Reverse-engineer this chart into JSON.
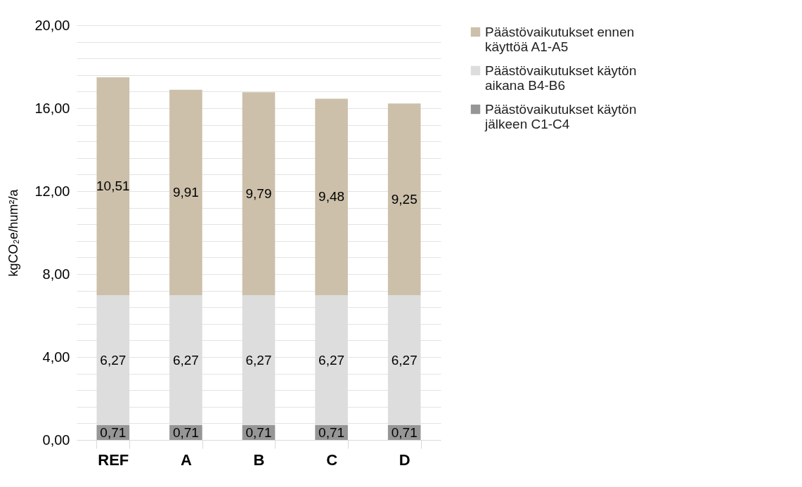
{
  "chart_data": {
    "type": "bar",
    "stacked": true,
    "ylabel": "kgCO₂e/hum²/a",
    "categories": [
      "REF",
      "A",
      "B",
      "C",
      "D"
    ],
    "series": [
      {
        "name": "Päästövaikutukset käytön jälkeen C1-C4",
        "color": "#969696",
        "values": [
          0.71,
          0.71,
          0.71,
          0.71,
          0.71
        ],
        "value_labels": [
          "0,71",
          "0,71",
          "0,71",
          "0,71",
          "0,71"
        ]
      },
      {
        "name": "Päästövaikutukset käytön aikana B4-B6",
        "color": "#dddddd",
        "values": [
          6.27,
          6.27,
          6.27,
          6.27,
          6.27
        ],
        "value_labels": [
          "6,27",
          "6,27",
          "6,27",
          "6,27",
          "6,27"
        ]
      },
      {
        "name": "Päästövaikutukset ennen käyttöä A1-A5",
        "color": "#ccc0aa",
        "values": [
          10.51,
          9.91,
          9.79,
          9.48,
          9.25
        ],
        "value_labels": [
          "10,51",
          "9,91",
          "9,79",
          "9,48",
          "9,25"
        ]
      }
    ],
    "ylim": [
      0,
      20
    ],
    "yticks": [
      {
        "value": 0,
        "label": "0,00"
      },
      {
        "value": 0.8,
        "label": null
      },
      {
        "value": 1.6,
        "label": null
      },
      {
        "value": 2.4,
        "label": null
      },
      {
        "value": 3.2,
        "label": null
      },
      {
        "value": 4,
        "label": "4,00"
      },
      {
        "value": 4.8,
        "label": null
      },
      {
        "value": 5.6,
        "label": null
      },
      {
        "value": 6.4,
        "label": null
      },
      {
        "value": 7.2,
        "label": null
      },
      {
        "value": 8,
        "label": "8,00"
      },
      {
        "value": 8.8,
        "label": null
      },
      {
        "value": 9.6,
        "label": null
      },
      {
        "value": 10.4,
        "label": null
      },
      {
        "value": 11.2,
        "label": null
      },
      {
        "value": 12,
        "label": "12,00"
      },
      {
        "value": 12.8,
        "label": null
      },
      {
        "value": 13.6,
        "label": null
      },
      {
        "value": 14.4,
        "label": null
      },
      {
        "value": 15.2,
        "label": null
      },
      {
        "value": 16,
        "label": "16,00"
      },
      {
        "value": 16.8,
        "label": null
      },
      {
        "value": 17.6,
        "label": null
      },
      {
        "value": 18.4,
        "label": null
      },
      {
        "value": 19.2,
        "label": null
      },
      {
        "value": 20,
        "label": "20,00"
      }
    ],
    "grid": "y",
    "legend": "right"
  }
}
